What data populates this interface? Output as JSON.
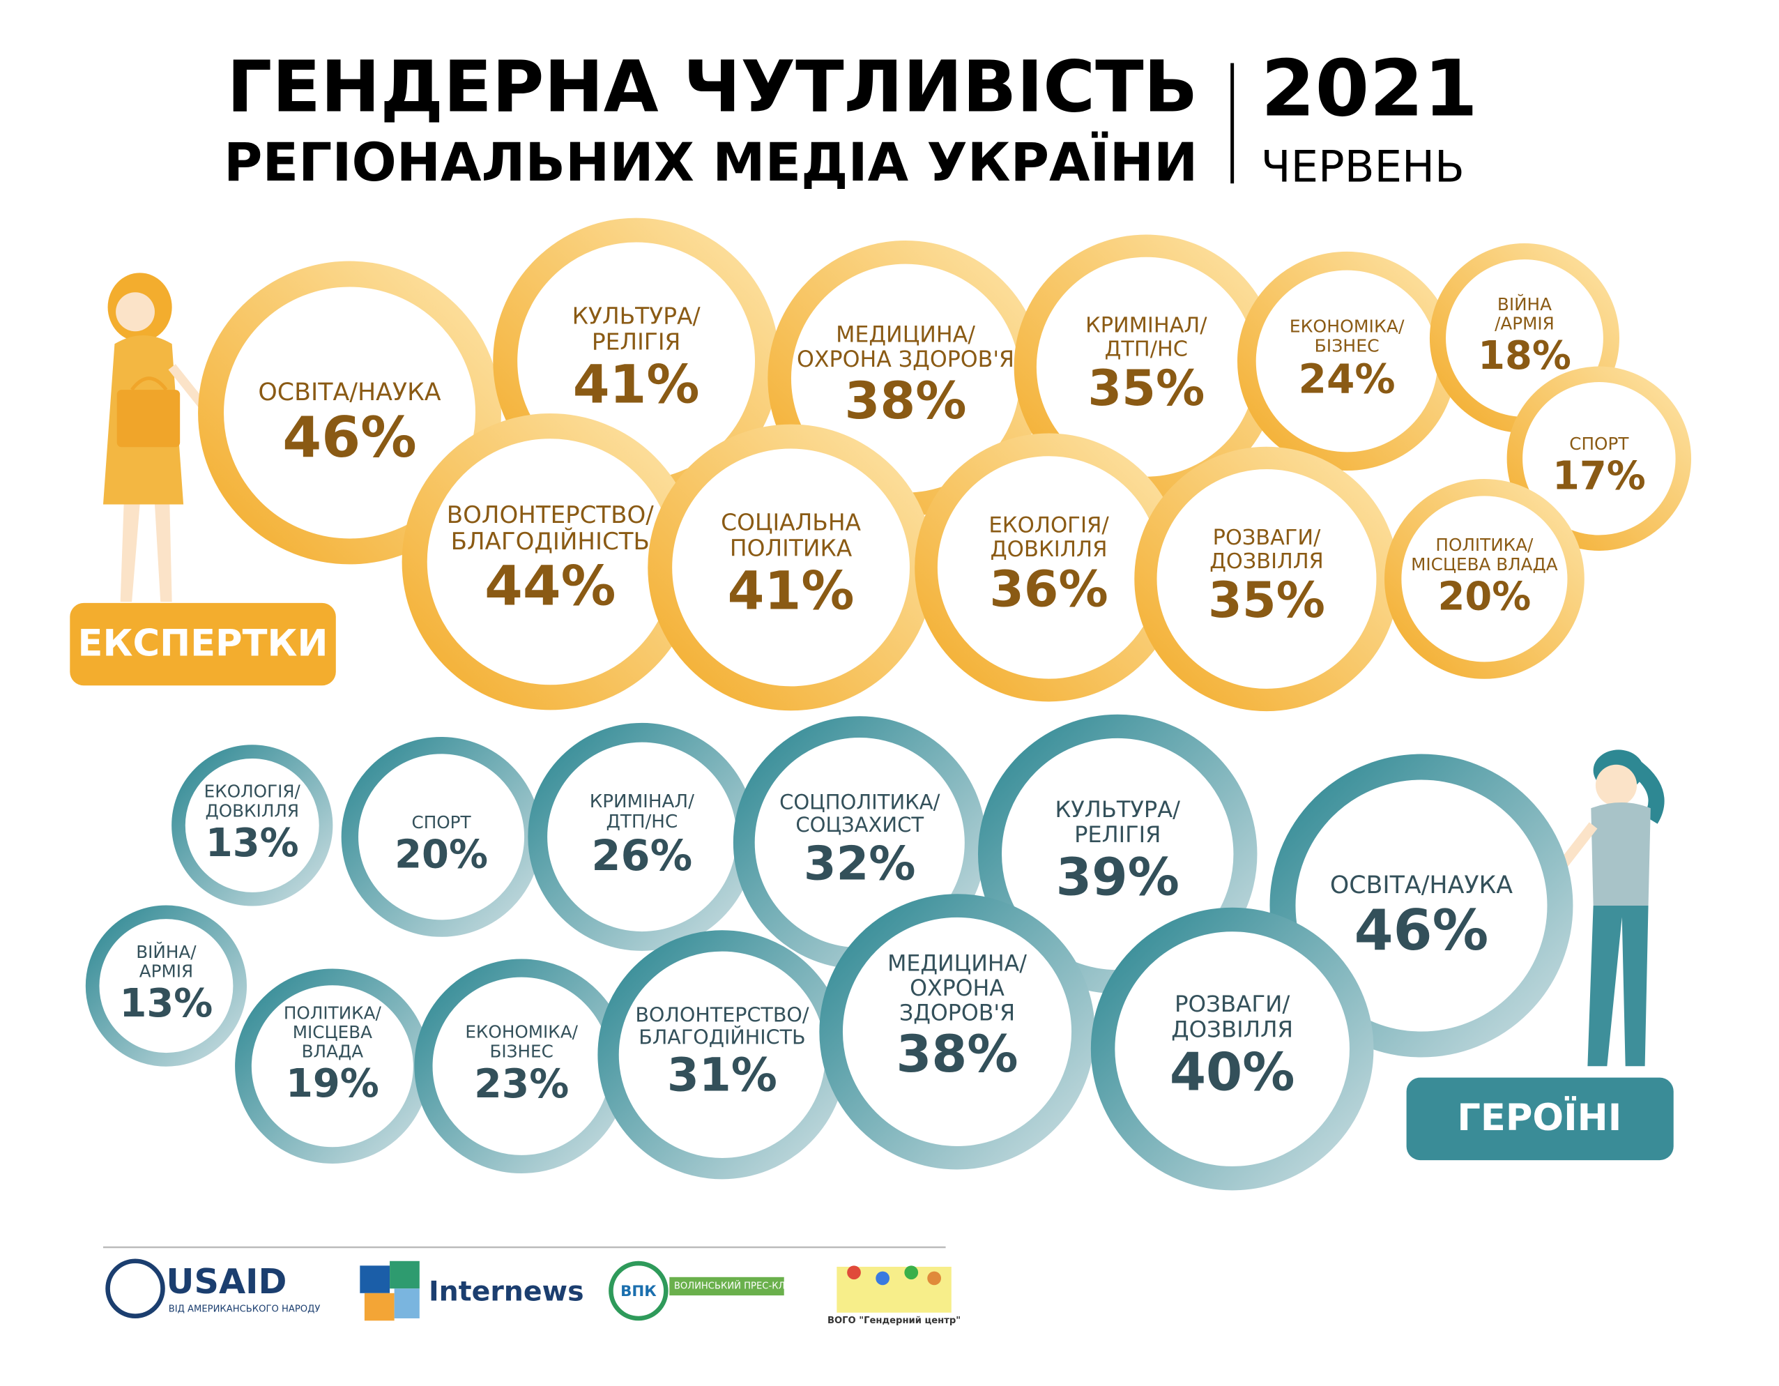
{
  "header": {
    "title_line1": "ГЕНДЕРНА ЧУТЛИВІСТЬ",
    "title_line2": "РЕГІОНАЛЬНИХ МЕДІА УКРАЇНИ",
    "year": "2021",
    "month": "ЧЕРВЕНЬ"
  },
  "chart_data": [
    {
      "type": "bubble",
      "title": "ЕКСПЕРТКИ",
      "color": "#f3ad2e",
      "color_light": "#fde3a6",
      "text_color": "#8a5a14",
      "categories": [
        "ОСВІТА/НАУКА",
        "КУЛЬТУРА/\nРЕЛІГІЯ",
        "МЕДИЦИНА/\nОХРОНА ЗДОРОВ'Я",
        "КРИМІНАЛ/\nДТП/НС",
        "ЕКОНОМІКА/\nБІЗНЕС",
        "ВІЙНА\n/АРМІЯ",
        "СПОРТ",
        "ВОЛОНТЕРСТВО/\nБЛАГОДІЙНІСТЬ",
        "СОЦІАЛЬНА\nПОЛІТИКА",
        "ЕКОЛОГІЯ/\nДОВКІЛЛЯ",
        "РОЗВАГИ/\nДОЗВІЛЛЯ",
        "ПОЛІТИКА/\nМІСЦЕВА ВЛАДА"
      ],
      "values": [
        46,
        41,
        38,
        35,
        24,
        18,
        17,
        44,
        41,
        36,
        35,
        20
      ],
      "value_labels": [
        "46%",
        "41%",
        "38%",
        "35%",
        "24%",
        "18%",
        "17%",
        "44%",
        "41%",
        "36%",
        "35%",
        "20%"
      ]
    },
    {
      "type": "bubble",
      "title": "ГЕРОЇНІ",
      "color": "#2e8893",
      "color_light": "#c9dde1",
      "text_color": "#33505a",
      "categories": [
        "ЕКОЛОГІЯ/\nДОВКІЛЛЯ",
        "СПОРТ",
        "КРИМІНАЛ/\nДТП/НС",
        "СОЦПОЛІТИКА/\nСОЦЗАХИСТ",
        "КУЛЬТУРА/\nРЕЛІГІЯ",
        "ОСВІТА/НАУКА",
        "ВІЙНА/\nАРМІЯ",
        "ПОЛІТИКА/\nМІСЦЕВА\nВЛАДА",
        "ЕКОНОМІКА/\nБІЗНЕС",
        "ВОЛОНТЕРСТВО/\nБЛАГОДІЙНІСТЬ",
        "МЕДИЦИНА/\nОХРОНА\nЗДОРОВ'Я",
        "РОЗВАГИ/\nДОЗВІЛЛЯ"
      ],
      "values": [
        13,
        20,
        26,
        32,
        39,
        46,
        13,
        19,
        23,
        31,
        38,
        40
      ],
      "value_labels": [
        "13%",
        "20%",
        "26%",
        "32%",
        "39%",
        "46%",
        "13%",
        "19%",
        "23%",
        "31%",
        "38%",
        "40%"
      ]
    }
  ],
  "footer": {
    "logos": [
      "USAID",
      "ВІД АМЕРИКАНСЬКОГО НАРОДУ",
      "Internews",
      "ВПК",
      "ВОЛИНСЬКИЙ ПРЕС-КЛУБ",
      "ВОГО \"Гендерний центр\""
    ]
  }
}
